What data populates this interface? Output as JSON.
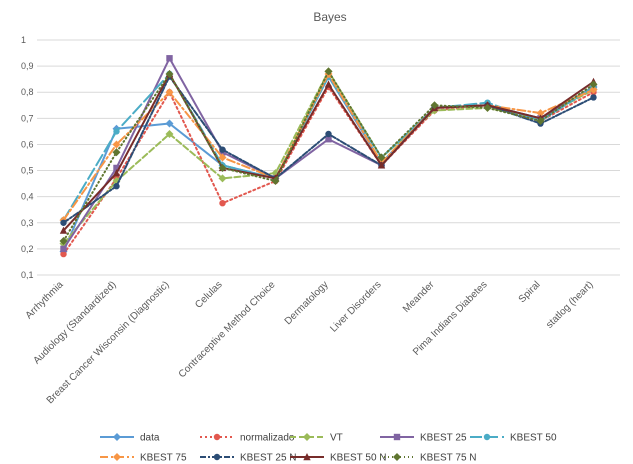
{
  "chart_data": {
    "type": "line",
    "title": "Bayes",
    "xlabel": "",
    "ylabel": "",
    "ylim": [
      0.1,
      1
    ],
    "yticks": [
      "0,1",
      "0,2",
      "0,3",
      "0,4",
      "0,5",
      "0,6",
      "0,7",
      "0,8",
      "0,9",
      "1"
    ],
    "grid": "horizontal",
    "legend_position": "bottom",
    "categories": [
      "Arrhythmia",
      "Audiology (Standardized)",
      "Breast Cancer Wisconsin (Diagnostic)",
      "Celulas",
      "Contraceptive Method Choice",
      "Dermatology",
      "Liver Disorders",
      "Meander",
      "Pima Indians Diabetes",
      "Spiral",
      "statlog (heart)"
    ],
    "series": [
      {
        "name": "data",
        "color": "#5B9BD5",
        "dash": "",
        "marker": "diamond",
        "values": [
          0.19,
          0.66,
          0.68,
          0.52,
          0.47,
          0.86,
          0.53,
          0.74,
          0.75,
          0.7,
          0.82
        ]
      },
      {
        "name": "normalizado",
        "color": "#E2584F",
        "dash": "2,3",
        "marker": "circle",
        "values": [
          0.18,
          0.47,
          0.8,
          0.375,
          0.46,
          0.82,
          0.52,
          0.73,
          0.75,
          0.69,
          0.8
        ]
      },
      {
        "name": "VT",
        "color": "#9BBB59",
        "dash": "6,3",
        "marker": "diamond",
        "values": [
          0.22,
          0.46,
          0.64,
          0.47,
          0.49,
          0.88,
          0.55,
          0.73,
          0.74,
          0.7,
          0.81
        ]
      },
      {
        "name": "KBEST 25",
        "color": "#8064A2",
        "dash": "",
        "marker": "square",
        "values": [
          0.2,
          0.51,
          0.93,
          0.57,
          0.47,
          0.62,
          0.52,
          0.74,
          0.75,
          0.7,
          0.82
        ]
      },
      {
        "name": "KBEST 50",
        "color": "#4BACC6",
        "dash": "12,4",
        "marker": "circle",
        "values": [
          0.31,
          0.65,
          0.87,
          0.52,
          0.47,
          0.86,
          0.55,
          0.74,
          0.76,
          0.69,
          0.82
        ]
      },
      {
        "name": "KBEST 75",
        "color": "#F79646",
        "dash": "8,3,2,3",
        "marker": "diamond",
        "values": [
          0.31,
          0.6,
          0.8,
          0.55,
          0.47,
          0.87,
          0.53,
          0.74,
          0.75,
          0.72,
          0.81
        ]
      },
      {
        "name": "KBEST 25 N",
        "color": "#2C4D75",
        "dash": "6,2,2,2",
        "marker": "circle",
        "values": [
          0.3,
          0.44,
          0.86,
          0.58,
          0.47,
          0.64,
          0.52,
          0.74,
          0.75,
          0.68,
          0.78
        ]
      },
      {
        "name": "KBEST 50 N",
        "color": "#772C2A",
        "dash": "",
        "marker": "triangle",
        "values": [
          0.27,
          0.49,
          0.87,
          0.51,
          0.47,
          0.83,
          0.52,
          0.74,
          0.75,
          0.7,
          0.84
        ]
      },
      {
        "name": "KBEST 75 N",
        "color": "#5F7530",
        "dash": "1,3",
        "marker": "diamond",
        "values": [
          0.23,
          0.57,
          0.87,
          0.51,
          0.46,
          0.88,
          0.55,
          0.75,
          0.74,
          0.69,
          0.83
        ]
      }
    ]
  }
}
